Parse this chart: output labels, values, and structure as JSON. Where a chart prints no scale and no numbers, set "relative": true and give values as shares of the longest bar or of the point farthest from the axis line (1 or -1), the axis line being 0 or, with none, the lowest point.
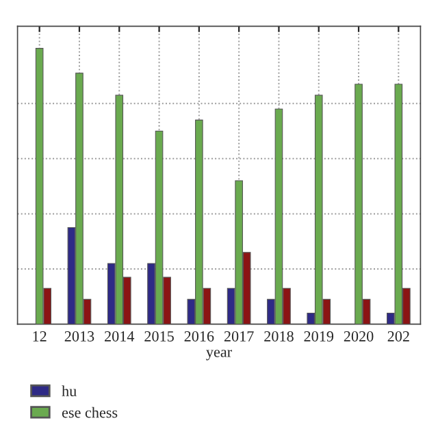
{
  "chart_data": {
    "type": "bar",
    "relative": true,
    "xlabel": "year",
    "categories": [
      "12",
      "2013",
      "2014",
      "2015",
      "2016",
      "2017",
      "2018",
      "2019",
      "2020",
      "202"
    ],
    "series": [
      {
        "name": "hu",
        "color": "#2e2a86",
        "values": [
          null,
          0.35,
          0.22,
          0.22,
          0.09,
          0.13,
          0.09,
          0.04,
          null,
          0.04
        ]
      },
      {
        "name": "ese chess",
        "color": "#6aaa4f",
        "values": [
          1,
          0.91,
          0.83,
          0.7,
          0.74,
          0.52,
          0.78,
          0.83,
          0.87,
          0.87
        ]
      },
      {
        "color": "#8b1414",
        "values": [
          0.13,
          0.09,
          0.17,
          0.17,
          0.13,
          0.26,
          0.13,
          0.09,
          0.09,
          0.13
        ]
      }
    ],
    "grid": true,
    "legend": "bottom left"
  }
}
